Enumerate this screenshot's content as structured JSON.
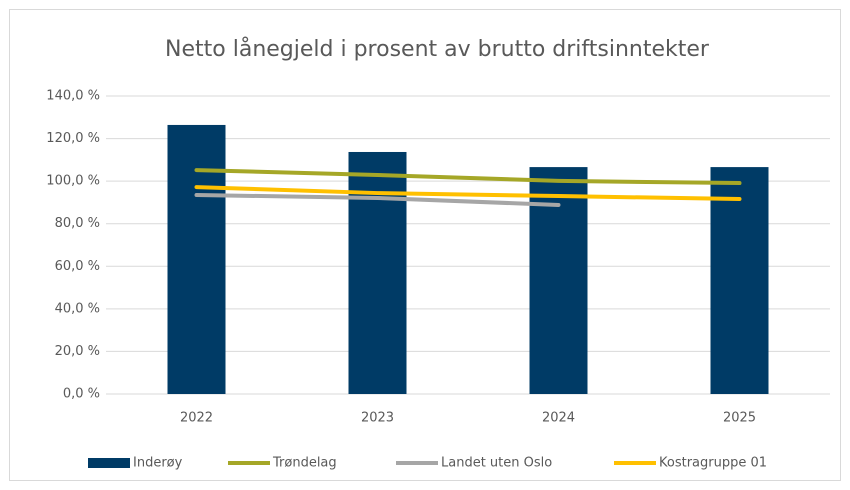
{
  "chart_data": {
    "type": "combo",
    "title": "Netto lånegjeld i prosent av brutto driftsinntekter",
    "categories": [
      "2022",
      "2023",
      "2024",
      "2025"
    ],
    "series": [
      {
        "name": "Inderøy",
        "type": "bar",
        "color": "#003b66",
        "values": [
          126.4,
          113.7,
          106.6,
          106.6
        ]
      },
      {
        "name": "Trøndelag",
        "type": "line",
        "color": "#a5a727",
        "values": [
          105.2,
          102.9,
          100.1,
          99.1
        ]
      },
      {
        "name": "Landet uten Oslo",
        "type": "line",
        "color": "#a6a6a6",
        "values": [
          93.5,
          92.1,
          88.8,
          null
        ]
      },
      {
        "name": "Kostragruppe 01",
        "type": "line",
        "color": "#ffc000",
        "values": [
          97.2,
          94.4,
          93.0,
          91.6
        ]
      }
    ],
    "ylim": [
      0,
      140
    ],
    "yticks": [
      {
        "value": 0,
        "label": "0,0 %"
      },
      {
        "value": 20,
        "label": "20,0 %"
      },
      {
        "value": 40,
        "label": "40,0 %"
      },
      {
        "value": 60,
        "label": "60,0 %"
      },
      {
        "value": 80,
        "label": "80,0 %"
      },
      {
        "value": 100,
        "label": "100,0 %"
      },
      {
        "value": 120,
        "label": "120,0 %"
      },
      {
        "value": 140,
        "label": "140,0 %"
      }
    ],
    "grid": true,
    "legend": "bottom"
  }
}
